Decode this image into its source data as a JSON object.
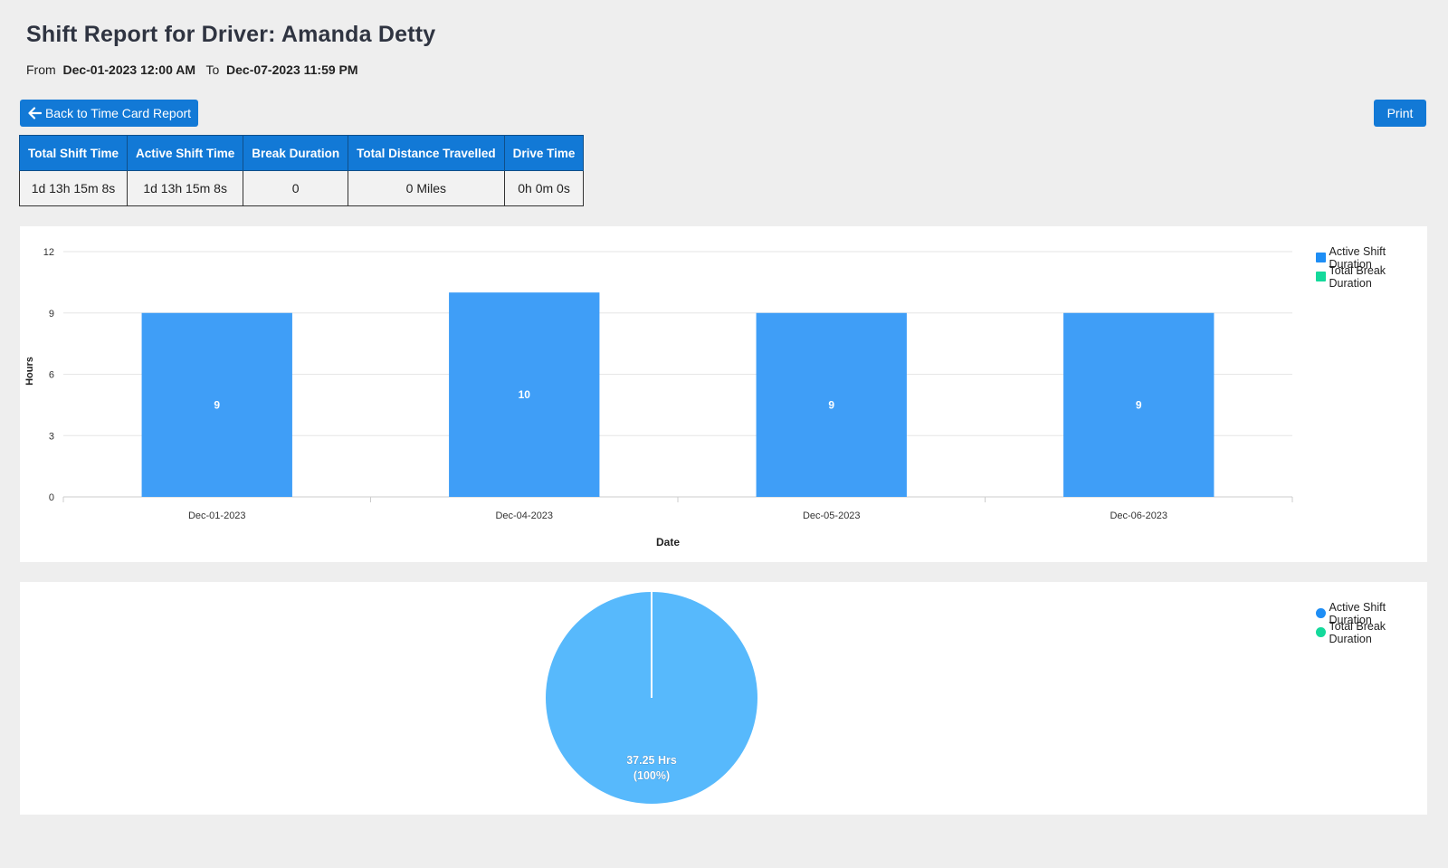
{
  "header": {
    "title": "Shift Report for Driver: Amanda Detty",
    "from_label": "From",
    "from_value": "Dec-01-2023 12:00 AM",
    "to_label": "To",
    "to_value": "Dec-07-2023 11:59 PM"
  },
  "toolbar": {
    "back_label": "Back to Time Card Report",
    "back_icon": "arrow-left-icon",
    "print_label": "Print"
  },
  "summary": {
    "headers": [
      "Total Shift Time",
      "Active Shift Time",
      "Break Duration",
      "Total Distance Travelled",
      "Drive Time"
    ],
    "values": [
      "1d 13h 15m 8s",
      "1d 13h 15m 8s",
      "0",
      "0 Miles",
      "0h 0m 0s"
    ]
  },
  "colors": {
    "accent": "#1279d6",
    "active": "#1e8ef5",
    "break": "#14d99b",
    "bar_fill": "#3f9ef7",
    "pie_fill": "#57b9fc"
  },
  "legend": {
    "active": "Active Shift Duration",
    "break": "Total Break Duration"
  },
  "chart_data": [
    {
      "type": "bar",
      "categories": [
        "Dec-01-2023",
        "Dec-04-2023",
        "Dec-05-2023",
        "Dec-06-2023"
      ],
      "series": [
        {
          "name": "Active Shift Duration",
          "values": [
            9,
            10,
            9,
            9
          ]
        },
        {
          "name": "Total Break Duration",
          "values": [
            0,
            0,
            0,
            0
          ]
        }
      ],
      "data_labels": [
        "9",
        "10",
        "9",
        "9"
      ],
      "xlabel": "Date",
      "ylabel": "Hours",
      "ylim": [
        0,
        12
      ],
      "yticks": [
        "0",
        "3",
        "6",
        "9",
        "12"
      ],
      "grid": true,
      "legend_position": "top-right"
    },
    {
      "type": "pie",
      "slices": [
        {
          "name": "Active Shift Duration",
          "value": 37.25
        },
        {
          "name": "Total Break Duration",
          "value": 0
        }
      ],
      "slice_label_value": "37.25 Hrs",
      "slice_label_percent": "(100%)",
      "legend_position": "top-right"
    }
  ]
}
